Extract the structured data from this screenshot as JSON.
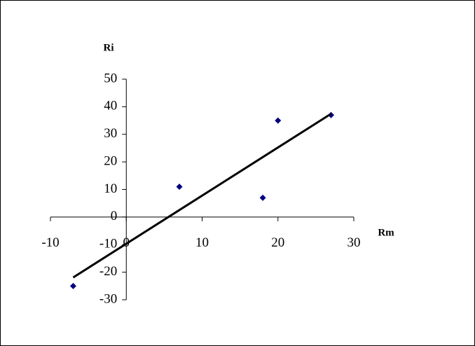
{
  "chart_data": {
    "type": "scatter",
    "x_label": "Rm",
    "y_label": "Ri",
    "x": [
      -7,
      7,
      18,
      20,
      27
    ],
    "values": [
      -25,
      11,
      7,
      35,
      37
    ],
    "color": "#000080",
    "trendline": true,
    "trendline_color": "#000000",
    "xlim": [
      -10,
      30
    ],
    "xticks": [
      -10,
      0,
      10,
      20,
      30
    ],
    "ylim": [
      -30,
      50
    ],
    "yticks": [
      -30,
      -20,
      -10,
      0,
      10,
      20,
      30,
      40,
      50
    ],
    "grid": false
  }
}
